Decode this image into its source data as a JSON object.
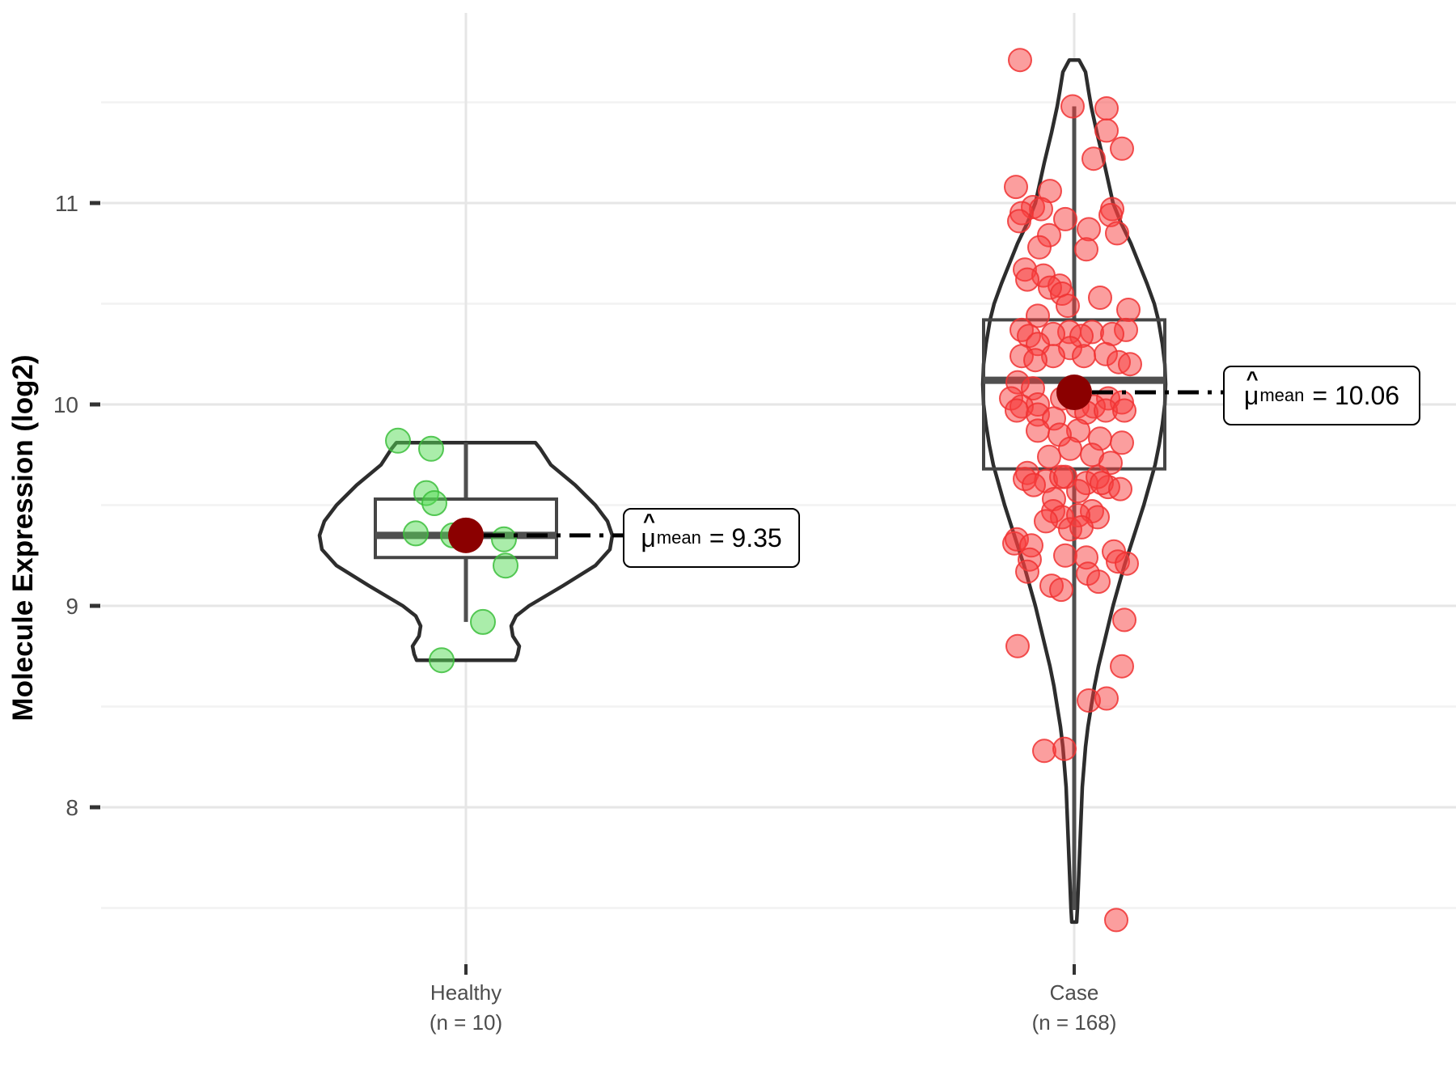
{
  "figure": {
    "y_axis": {
      "title": "Molecule Expression (log2)",
      "tick_labels": [
        "11",
        "10",
        "9",
        "8"
      ]
    },
    "x_axis": {
      "groups": [
        {
          "label_line1": "Healthy",
          "label_line2": "(n = 10)"
        },
        {
          "label_line1": "Case",
          "label_line2": "(n = 168)"
        }
      ]
    },
    "annotations": {
      "healthy": {
        "hat": "^",
        "mu": "μ",
        "sub": "mean",
        "value": "= 9.35"
      },
      "case": {
        "hat": "^",
        "mu": "μ",
        "sub": "mean",
        "value": "= 10.06"
      }
    }
  },
  "chart_data": {
    "type": "violin+box+jitter",
    "title": "",
    "xlabel": "",
    "ylabel": "Molecule Expression (log2)",
    "ylim": [
      7.22,
      11.94
    ],
    "y_major_ticks": [
      11,
      10,
      9,
      8
    ],
    "y_minor_ticks": [
      11.5,
      10.5,
      9.5,
      8.5,
      7.5
    ],
    "grid": true,
    "legend": "none",
    "colors": {
      "violin_outline": "#2d2d2d",
      "violin_fill": "#ffffff",
      "box_stroke": "#454545",
      "median_stroke": "#4f4f4f",
      "whisker_stroke": "#4f4f4f",
      "mean_dot": "#8b0000",
      "grid_major": "#e6e6e6",
      "grid_minor": "#f2f2f2",
      "tick_mark": "#333333",
      "tick_label": "#4d4d4d",
      "axis_title": "#000000",
      "connector": "#000000"
    },
    "groups": [
      {
        "name": "Healthy",
        "n": 10,
        "mean": 9.35,
        "mean_label": "9.35",
        "box": {
          "q1": 9.24,
          "median": 9.35,
          "q3": 9.53,
          "whisker_low": 8.92,
          "whisker_high": 9.81
        },
        "point_fill": "#55dc55",
        "point_stroke": "#3cbe3c",
        "point_radius": 15,
        "violin": [
          [
            9.81,
            86
          ],
          [
            9.78,
            92
          ],
          [
            9.7,
            105
          ],
          [
            9.6,
            135
          ],
          [
            9.5,
            160
          ],
          [
            9.42,
            175
          ],
          [
            9.35,
            181
          ],
          [
            9.28,
            178
          ],
          [
            9.2,
            160
          ],
          [
            9.1,
            120
          ],
          [
            9.0,
            78
          ],
          [
            8.95,
            62
          ],
          [
            8.9,
            56
          ],
          [
            8.85,
            58
          ],
          [
            8.8,
            66
          ],
          [
            8.76,
            64
          ],
          [
            8.73,
            61
          ]
        ],
        "points": [
          [
            -84,
            9.82
          ],
          [
            -43,
            9.78
          ],
          [
            -49,
            9.56
          ],
          [
            -39,
            9.51
          ],
          [
            -62,
            9.36
          ],
          [
            -16,
            9.35
          ],
          [
            47,
            9.33
          ],
          [
            49,
            9.2
          ],
          [
            21,
            8.92
          ],
          [
            -30,
            8.73
          ]
        ]
      },
      {
        "name": "Case",
        "n": 168,
        "mean": 10.06,
        "mean_label": "10.06",
        "box": {
          "q1": 9.68,
          "median": 10.12,
          "q3": 10.42,
          "whisker_low": 7.49,
          "whisker_high": 11.48
        },
        "point_fill": "#f73d3d",
        "point_stroke": "#f03232",
        "point_radius": 14,
        "violin": [
          [
            11.71,
            6
          ],
          [
            11.65,
            14
          ],
          [
            11.55,
            18
          ],
          [
            11.48,
            21
          ],
          [
            11.35,
            28
          ],
          [
            11.2,
            37
          ],
          [
            11.0,
            48
          ],
          [
            10.9,
            58
          ],
          [
            10.8,
            70
          ],
          [
            10.7,
            80
          ],
          [
            10.6,
            90
          ],
          [
            10.5,
            99
          ],
          [
            10.42,
            104
          ],
          [
            10.3,
            109
          ],
          [
            10.2,
            112
          ],
          [
            10.1,
            113
          ],
          [
            10.0,
            112
          ],
          [
            9.9,
            109
          ],
          [
            9.8,
            105
          ],
          [
            9.7,
            100
          ],
          [
            9.6,
            93
          ],
          [
            9.5,
            86
          ],
          [
            9.4,
            78
          ],
          [
            9.3,
            70
          ],
          [
            9.2,
            62
          ],
          [
            9.1,
            55
          ],
          [
            9.0,
            48
          ],
          [
            8.9,
            42
          ],
          [
            8.8,
            36
          ],
          [
            8.7,
            30
          ],
          [
            8.6,
            25
          ],
          [
            8.5,
            21
          ],
          [
            8.4,
            17
          ],
          [
            8.3,
            14
          ],
          [
            8.2,
            12
          ],
          [
            8.1,
            10
          ],
          [
            8.0,
            9
          ],
          [
            7.9,
            8
          ],
          [
            7.8,
            7
          ],
          [
            7.7,
            6
          ],
          [
            7.6,
            5
          ],
          [
            7.5,
            4
          ],
          [
            7.43,
            3
          ]
        ],
        "points": [
          [
            -67,
            11.71
          ],
          [
            -2,
            11.48
          ],
          [
            40,
            11.47
          ],
          [
            40,
            11.36
          ],
          [
            59,
            11.27
          ],
          [
            24,
            11.22
          ],
          [
            -72,
            11.08
          ],
          [
            -30,
            11.06
          ],
          [
            -51,
            10.98
          ],
          [
            -41,
            10.97
          ],
          [
            47,
            10.97
          ],
          [
            -65,
            10.95
          ],
          [
            45,
            10.94
          ],
          [
            -68,
            10.91
          ],
          [
            -11,
            10.92
          ],
          [
            18,
            10.87
          ],
          [
            53,
            10.85
          ],
          [
            -31,
            10.84
          ],
          [
            15,
            10.77
          ],
          [
            -43,
            10.78
          ],
          [
            -61,
            10.67
          ],
          [
            -38,
            10.64
          ],
          [
            -58,
            10.62
          ],
          [
            -18,
            10.59
          ],
          [
            -30,
            10.58
          ],
          [
            -15,
            10.55
          ],
          [
            32,
            10.53
          ],
          [
            -8,
            10.49
          ],
          [
            67,
            10.47
          ],
          [
            -45,
            10.44
          ],
          [
            -65,
            10.37
          ],
          [
            64,
            10.37
          ],
          [
            -6,
            10.36
          ],
          [
            22,
            10.36
          ],
          [
            -26,
            10.35
          ],
          [
            47,
            10.35
          ],
          [
            -56,
            10.34
          ],
          [
            9,
            10.34
          ],
          [
            -45,
            10.3
          ],
          [
            -5,
            10.28
          ],
          [
            39,
            10.25
          ],
          [
            -65,
            10.24
          ],
          [
            -26,
            10.24
          ],
          [
            12,
            10.24
          ],
          [
            -48,
            10.22
          ],
          [
            55,
            10.21
          ],
          [
            69,
            10.2
          ],
          [
            -70,
            10.11
          ],
          [
            -51,
            10.08
          ],
          [
            -78,
            10.03
          ],
          [
            -15,
            10.03
          ],
          [
            42,
            10.03
          ],
          [
            59,
            10.01
          ],
          [
            -45,
            10.0
          ],
          [
            -65,
            9.99
          ],
          [
            4,
            9.99
          ],
          [
            24,
            9.99
          ],
          [
            -71,
            9.97
          ],
          [
            15,
            9.96
          ],
          [
            -45,
            9.95
          ],
          [
            -25,
            9.93
          ],
          [
            39,
            9.97
          ],
          [
            62,
            9.97
          ],
          [
            -45,
            9.87
          ],
          [
            5,
            9.87
          ],
          [
            -18,
            9.85
          ],
          [
            32,
            9.83
          ],
          [
            59,
            9.81
          ],
          [
            -5,
            9.78
          ],
          [
            -31,
            9.74
          ],
          [
            22,
            9.75
          ],
          [
            45,
            9.71
          ],
          [
            -58,
            9.66
          ],
          [
            -35,
            9.62
          ],
          [
            15,
            9.61
          ],
          [
            42,
            9.59
          ],
          [
            -61,
            9.63
          ],
          [
            -16,
            9.64
          ],
          [
            29,
            9.64
          ],
          [
            -50,
            9.6
          ],
          [
            34,
            9.61
          ],
          [
            -11,
            9.64
          ],
          [
            57,
            9.58
          ],
          [
            -25,
            9.53
          ],
          [
            5,
            9.57
          ],
          [
            -26,
            9.47
          ],
          [
            22,
            9.47
          ],
          [
            -15,
            9.44
          ],
          [
            29,
            9.44
          ],
          [
            5,
            9.45
          ],
          [
            -35,
            9.42
          ],
          [
            -5,
            9.38
          ],
          [
            9,
            9.39
          ],
          [
            -74,
            9.31
          ],
          [
            -71,
            9.33
          ],
          [
            -53,
            9.3
          ],
          [
            -11,
            9.25
          ],
          [
            15,
            9.24
          ],
          [
            49,
            9.27
          ],
          [
            54,
            9.22
          ],
          [
            65,
            9.21
          ],
          [
            -55,
            9.23
          ],
          [
            -58,
            9.17
          ],
          [
            17,
            9.16
          ],
          [
            30,
            9.12
          ],
          [
            -28,
            9.1
          ],
          [
            -16,
            9.08
          ],
          [
            62,
            8.93
          ],
          [
            -70,
            8.8
          ],
          [
            59,
            8.7
          ],
          [
            18,
            8.53
          ],
          [
            40,
            8.54
          ],
          [
            -37,
            8.28
          ],
          [
            -12,
            8.29
          ],
          [
            52,
            7.44
          ]
        ]
      }
    ]
  }
}
